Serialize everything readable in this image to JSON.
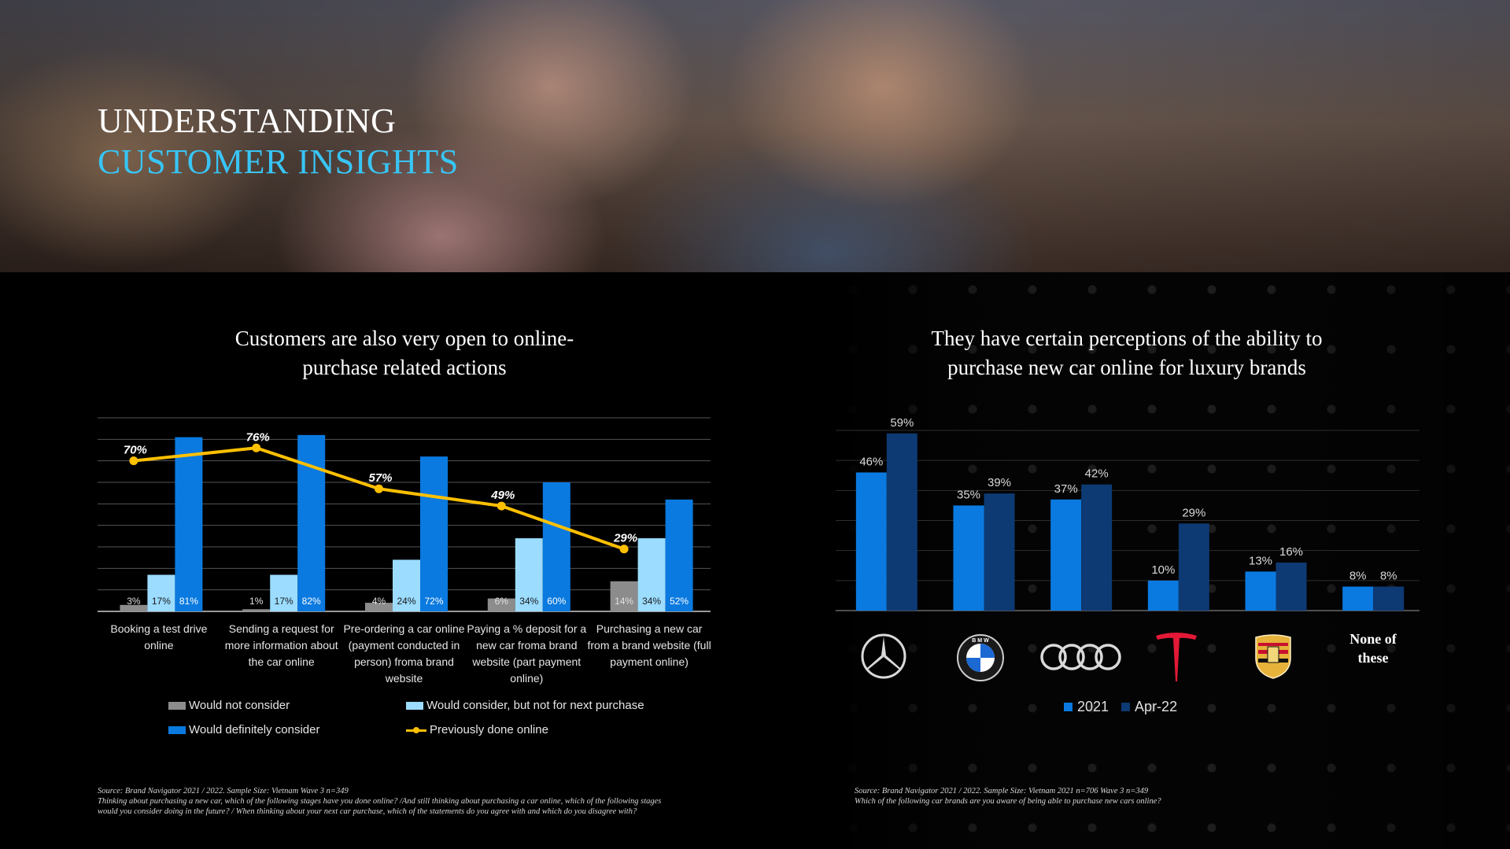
{
  "header": {
    "title_line_1": "UNDERSTANDING",
    "title_line_2": "CUSTOMER INSIGHTS"
  },
  "left_panel": {
    "heading_line_1": "Customers are also very open to online-",
    "heading_line_2": "purchase related actions",
    "categories": [
      [
        "Booking a test drive",
        "online"
      ],
      [
        "Sending a request for",
        "more information about",
        "the car online"
      ],
      [
        "Pre-ordering a car online",
        "(payment conducted in",
        "person) froma  brand",
        "website"
      ],
      [
        "Paying a % deposit for a",
        "new car froma  brand",
        "website (part payment",
        "online)"
      ],
      [
        "Purchasing a new car",
        "from a brand website (full",
        "payment online)"
      ]
    ],
    "legend": {
      "not_consider": "Would not consider",
      "consider_not_next": "Would consider, but not for next purchase",
      "definitely": "Would definitely consider",
      "previously": "Previously done online"
    },
    "source_lines": [
      "Source: Brand Navigator 2021 / 2022. Sample Size: Vietnam Wave 3 n=349",
      "Thinking about purchasing a new car, which of the following stages have you done online? /And still thinking about purchasing a car online, which of the following stages",
      "would you consider doing in the future? / When thinking about your next car purchase, which of the statements do you agree with and which do you disagree with?"
    ]
  },
  "right_panel": {
    "heading_line_1": "They have certain perceptions of the ability to",
    "heading_line_2": "purchase new car online for luxury brands",
    "brands": [
      "mercedes-benz",
      "bmw",
      "audi",
      "tesla",
      "porsche",
      "none"
    ],
    "brand_logo_text": {
      "bmw": "B M W"
    },
    "none_label_line_1": "None of",
    "none_label_line_2": "these",
    "source_lines": [
      "Source: Brand Navigator 2021 / 2022. Sample Size: Vietnam 2021 n=706 Wave 3 n=349",
      "Which of the following car brands are you aware of being able to purchase new cars online?"
    ]
  },
  "colors": {
    "not_consider": "#8c8c8c",
    "consider_not_next": "#9bdcff",
    "definitely": "#0a7ae0",
    "previously": "#ffc000",
    "series_2021": "#0a7ae0",
    "series_apr22": "#0d3a73",
    "title_accent": "#38c5f5"
  },
  "chart_data": [
    {
      "type": "bar",
      "title": "Customers are also very open to online-purchase related actions",
      "categories": [
        "Booking a test drive online",
        "Sending a request for more information about the car online",
        "Pre-ordering a car online (payment conducted in person) froma  brand website",
        "Paying a % deposit for a new car froma  brand website (part payment online)",
        "Purchasing a new car from a brand website (full payment online)"
      ],
      "series": [
        {
          "name": "Would not consider",
          "values": [
            3,
            1,
            4,
            6,
            14
          ],
          "labels": [
            "3%",
            "1%",
            "4%",
            "6%",
            "14%"
          ]
        },
        {
          "name": "Would consider, but not for next purchase",
          "values": [
            17,
            17,
            24,
            34,
            34
          ],
          "labels": [
            "17%",
            "17%",
            "24%",
            "34%",
            "34%"
          ]
        },
        {
          "name": "Would definitely consider",
          "values": [
            81,
            82,
            72,
            60,
            52
          ],
          "labels": [
            "81%",
            "82%",
            "72%",
            "60%",
            "52%"
          ]
        },
        {
          "name": "Previously done online",
          "type": "line",
          "values": [
            70,
            76,
            57,
            49,
            29
          ],
          "labels": [
            "70%",
            "76%",
            "57%",
            "49%",
            "29%"
          ]
        }
      ],
      "ylim": [
        0,
        90
      ],
      "grid": true,
      "legend_position": "bottom"
    },
    {
      "type": "bar",
      "title": "They have certain perceptions of the ability to purchase new car online for luxury brands",
      "categories": [
        "Mercedes-Benz",
        "BMW",
        "Audi",
        "Tesla",
        "Porsche",
        "None of these"
      ],
      "series": [
        {
          "name": "2021",
          "values": [
            46,
            35,
            37,
            10,
            13,
            8
          ],
          "labels": [
            "46%",
            "35%",
            "37%",
            "10%",
            "13%",
            "8%"
          ]
        },
        {
          "name": "Apr-22",
          "values": [
            59,
            39,
            42,
            29,
            16,
            8
          ],
          "labels": [
            "59%",
            "39%",
            "42%",
            "29%",
            "16%",
            "8%"
          ]
        }
      ],
      "ylim": [
        0,
        60
      ],
      "grid": true,
      "legend_position": "bottom"
    }
  ]
}
